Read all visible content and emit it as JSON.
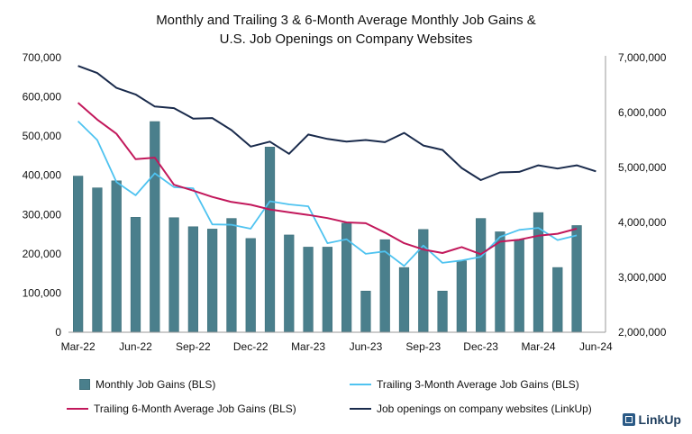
{
  "title_line1": "Monthly and Trailing 3 & 6-Month Average Monthly Job Gains &",
  "title_line2": "U.S. Job Openings on Company Websites",
  "logo_text": "LinkUp",
  "colors": {
    "bars": "#4a7f8c",
    "trailing3": "#4fc3f0",
    "trailing6": "#c2185b",
    "openings": "#1a2b4c"
  },
  "chart_data": {
    "type": "bar",
    "x_tick_labels": [
      "Mar-22",
      "Jun-22",
      "Sep-22",
      "Dec-22",
      "Mar-23",
      "Jun-23",
      "Sep-23",
      "Dec-23",
      "Mar-24",
      "Jun-24"
    ],
    "left_axis": {
      "ylim": [
        0,
        700000
      ],
      "ticks": [
        "0",
        "100,000",
        "200,000",
        "300,000",
        "400,000",
        "500,000",
        "600,000",
        "700,000"
      ]
    },
    "right_axis": {
      "ylim": [
        2000000,
        7000000
      ],
      "ticks": [
        "2,000,000",
        "3,000,000",
        "4,000,000",
        "5,000,000",
        "6,000,000",
        "7,000,000"
      ]
    },
    "series": [
      {
        "name": "Monthly Job Gains (BLS)",
        "kind": "bar",
        "axis": "left",
        "values": [
          398000,
          368000,
          386000,
          293000,
          537000,
          292000,
          269000,
          263000,
          290000,
          239000,
          472000,
          248000,
          217000,
          217000,
          278000,
          105000,
          236000,
          165000,
          262000,
          105000,
          182000,
          290000,
          256000,
          236000,
          305000,
          165000,
          272000
        ]
      },
      {
        "name": "Trailing 3-Month Average Job Gains (BLS)",
        "kind": "line",
        "axis": "left",
        "values": [
          538000,
          490000,
          383000,
          349000,
          405000,
          370000,
          367000,
          275000,
          274000,
          264000,
          334000,
          326000,
          321000,
          227000,
          237000,
          200000,
          206000,
          169000,
          221000,
          177000,
          183000,
          192000,
          243000,
          261000,
          266000,
          235000,
          247000
        ]
      },
      {
        "name": "Trailing 6-Month Average Job Gains (BLS)",
        "kind": "line",
        "axis": "left",
        "values": [
          585000,
          542000,
          506000,
          441000,
          445000,
          376000,
          361000,
          345000,
          332000,
          325000,
          313000,
          306000,
          299000,
          291000,
          280000,
          278000,
          254000,
          227000,
          211000,
          202000,
          217000,
          199000,
          231000,
          236000,
          246000,
          251000,
          264000
        ]
      },
      {
        "name": "Job openings on company websites (LinkUp)",
        "kind": "line",
        "axis": "right",
        "values": [
          6850000,
          6720000,
          6450000,
          6330000,
          6110000,
          6080000,
          5890000,
          5900000,
          5680000,
          5380000,
          5470000,
          5250000,
          5600000,
          5520000,
          5470000,
          5500000,
          5460000,
          5630000,
          5400000,
          5320000,
          4990000,
          4770000,
          4910000,
          4920000,
          5040000,
          4980000,
          5040000,
          4930000
        ]
      }
    ],
    "grid": false,
    "legend_position": "bottom"
  }
}
